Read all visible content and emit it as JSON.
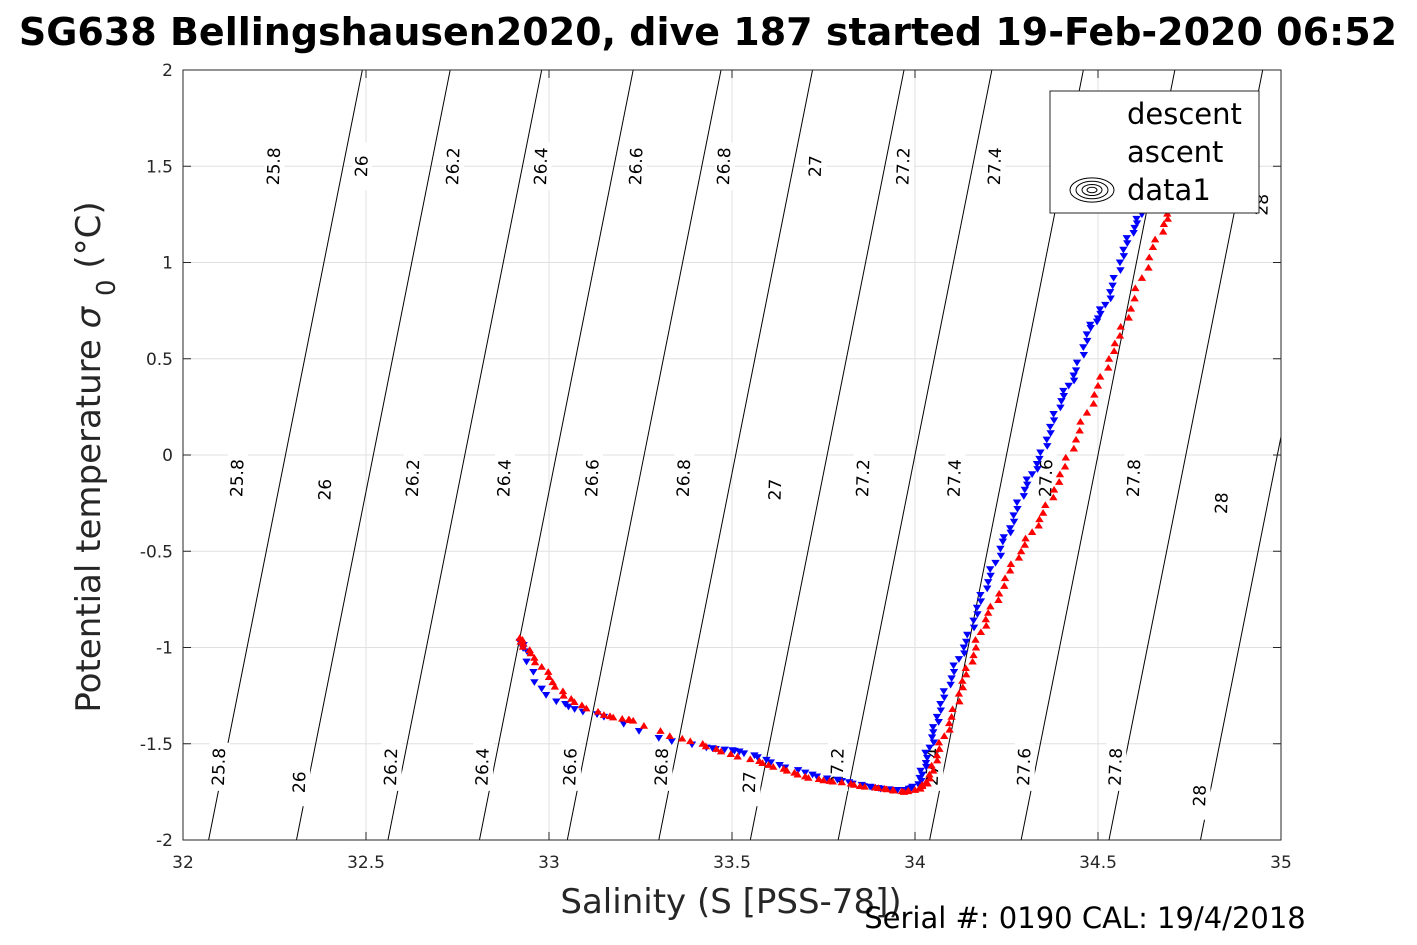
{
  "title": "SG638 Bellingshausen2020, dive 187 started 19-Feb-2020 06:52",
  "footer_text": "Serial #: 0190  CAL: 19/4/2018",
  "chart_data": {
    "type": "scatter",
    "title": "SG638 Bellingshausen2020, dive 187 started 19-Feb-2020 06:52",
    "xlabel": "Salinity (S [PSS-78])",
    "ylabel": "Potential temperature",
    "ylabel_symbol": "σ",
    "ylabel_subscript": "0",
    "ylabel_unit": "(°C)",
    "xlim": [
      32,
      35
    ],
    "ylim": [
      -2,
      2
    ],
    "x_ticks": [
      "32",
      "32.5",
      "33",
      "33.5",
      "34",
      "34.5",
      "35"
    ],
    "y_ticks": [
      "-2",
      "-1.5",
      "-1",
      "-0.5",
      "0",
      "0.5",
      "1",
      "1.5",
      "2"
    ],
    "grid": true,
    "legend_position": "top-right",
    "legend": [
      {
        "label": "descent",
        "marker": "triangle-down",
        "color": "#0000ff"
      },
      {
        "label": "ascent",
        "marker": "triangle-up",
        "color": "#ff0000"
      },
      {
        "label": "data1",
        "marker": "contour",
        "color": "#000000"
      }
    ],
    "contours": [
      {
        "level": "25.8",
        "x_bottom": 32.07,
        "x_top": 32.05
      },
      {
        "level": "26",
        "x_bottom": 32.31,
        "x_top": 32.29
      },
      {
        "level": "26.2",
        "x_bottom": 32.56,
        "x_top": 32.54
      },
      {
        "level": "26.4",
        "x_bottom": 32.81,
        "x_top": 32.79
      },
      {
        "level": "26.6",
        "x_bottom": 33.05,
        "x_top": 33.04
      },
      {
        "level": "26.8",
        "x_bottom": 33.3,
        "x_top": 33.28
      },
      {
        "level": "27",
        "x_bottom": 33.55,
        "x_top": 33.53
      },
      {
        "level": "27.2",
        "x_bottom": 33.79,
        "x_top": 33.78
      },
      {
        "level": "27.4",
        "x_bottom": 34.04,
        "x_top": 34.02
      },
      {
        "level": "27.6",
        "x_bottom": 34.29,
        "x_top": 34.27
      },
      {
        "level": "27.8",
        "x_bottom": 34.53,
        "x_top": 34.51
      },
      {
        "level": "28",
        "x_bottom": 34.78,
        "x_top": 34.76
      }
    ],
    "contour_top_temp": 5.05,
    "contour_labels": [
      {
        "level": "25.8",
        "x": 32.1,
        "y": -1.62
      },
      {
        "level": "26",
        "x": 32.32,
        "y": -1.7
      },
      {
        "level": "26.2",
        "x": 32.57,
        "y": -1.62
      },
      {
        "level": "26.4",
        "x": 32.82,
        "y": -1.62
      },
      {
        "level": "26.6",
        "x": 33.06,
        "y": -1.62
      },
      {
        "level": "26.8",
        "x": 33.31,
        "y": -1.62
      },
      {
        "level": "27",
        "x": 33.55,
        "y": -1.7
      },
      {
        "level": "27.2",
        "x": 33.79,
        "y": -1.62
      },
      {
        "level": "27.4",
        "x": 34.05,
        "y": -1.62
      },
      {
        "level": "27.6",
        "x": 34.3,
        "y": -1.62
      },
      {
        "level": "27.8",
        "x": 34.55,
        "y": -1.62
      },
      {
        "level": "28",
        "x": 34.78,
        "y": -1.77
      },
      {
        "level": "25.8",
        "x": 32.15,
        "y": -0.12
      },
      {
        "level": "26",
        "x": 32.39,
        "y": -0.18
      },
      {
        "level": "26.2",
        "x": 32.63,
        "y": -0.12
      },
      {
        "level": "26.4",
        "x": 32.88,
        "y": -0.12
      },
      {
        "level": "26.6",
        "x": 33.12,
        "y": -0.12
      },
      {
        "level": "26.8",
        "x": 33.37,
        "y": -0.12
      },
      {
        "level": "27",
        "x": 33.62,
        "y": -0.18
      },
      {
        "level": "27.2",
        "x": 33.86,
        "y": -0.12
      },
      {
        "level": "27.4",
        "x": 34.11,
        "y": -0.12
      },
      {
        "level": "27.6",
        "x": 34.36,
        "y": -0.12
      },
      {
        "level": "27.8",
        "x": 34.6,
        "y": -0.12
      },
      {
        "level": "28",
        "x": 34.84,
        "y": -0.25
      },
      {
        "level": "25.8",
        "x": 32.25,
        "y": 1.5
      },
      {
        "level": "26",
        "x": 32.49,
        "y": 1.5
      },
      {
        "level": "26.2",
        "x": 32.74,
        "y": 1.5
      },
      {
        "level": "26.4",
        "x": 32.98,
        "y": 1.5
      },
      {
        "level": "26.6",
        "x": 33.24,
        "y": 1.5
      },
      {
        "level": "26.8",
        "x": 33.48,
        "y": 1.5
      },
      {
        "level": "27",
        "x": 33.73,
        "y": 1.5
      },
      {
        "level": "27.2",
        "x": 33.97,
        "y": 1.5
      },
      {
        "level": "27.4",
        "x": 34.22,
        "y": 1.5
      },
      {
        "level": "27.6",
        "x": 34.36,
        "y": -0.12
      },
      {
        "level": "28",
        "x": 34.95,
        "y": 1.3
      }
    ],
    "series": [
      {
        "name": "descent",
        "marker": "triangle-down",
        "color": "#0000ff",
        "x": [
          32.92,
          32.94,
          32.96,
          33.02,
          33.07,
          33.15,
          33.3,
          33.43,
          33.48,
          33.52,
          33.57,
          33.63,
          33.7,
          33.76,
          33.82,
          33.86,
          33.9,
          33.94,
          33.97,
          33.99,
          34.01,
          34.02,
          34.03,
          34.04,
          34.05,
          34.06,
          34.08,
          34.1,
          34.12,
          34.14,
          34.16,
          34.18,
          34.2,
          34.22,
          34.24,
          34.26,
          34.28,
          34.3,
          34.32,
          34.34,
          34.36,
          34.38,
          34.4,
          34.42,
          34.44,
          34.46,
          34.48,
          34.5,
          34.52,
          34.54,
          34.56,
          34.58,
          34.6,
          34.62,
          34.64,
          34.66,
          34.68,
          34.7
        ],
        "y": [
          -0.97,
          -1.02,
          -1.18,
          -1.28,
          -1.32,
          -1.36,
          -1.47,
          -1.52,
          -1.53,
          -1.54,
          -1.57,
          -1.61,
          -1.65,
          -1.68,
          -1.7,
          -1.72,
          -1.73,
          -1.74,
          -1.74,
          -1.73,
          -1.71,
          -1.66,
          -1.6,
          -1.52,
          -1.44,
          -1.36,
          -1.26,
          -1.16,
          -1.06,
          -0.97,
          -0.86,
          -0.76,
          -0.66,
          -0.56,
          -0.45,
          -0.38,
          -0.28,
          -0.18,
          -0.1,
          -0.02,
          0.08,
          0.18,
          0.28,
          0.36,
          0.44,
          0.56,
          0.66,
          0.71,
          0.78,
          0.88,
          1.0,
          1.1,
          1.18,
          1.25,
          1.32,
          1.38,
          1.42,
          1.5
        ]
      },
      {
        "name": "ascent",
        "marker": "triangle-up",
        "color": "#ff0000",
        "x": [
          32.92,
          32.93,
          32.95,
          32.98,
          33.01,
          33.04,
          33.09,
          33.15,
          33.2,
          33.23,
          33.33,
          33.42,
          33.47,
          33.55,
          33.6,
          33.65,
          33.7,
          33.75,
          33.8,
          33.85,
          33.9,
          33.94,
          33.97,
          34.0,
          34.02,
          34.03,
          34.05,
          34.06,
          34.08,
          34.1,
          34.12,
          34.14,
          34.16,
          34.18,
          34.2,
          34.23,
          34.26,
          34.29,
          34.32,
          34.35,
          34.38,
          34.41,
          34.44,
          34.47,
          34.5,
          34.53,
          34.56,
          34.59,
          34.62,
          34.65,
          34.68,
          34.7
        ],
        "y": [
          -0.95,
          -0.98,
          -1.03,
          -1.1,
          -1.18,
          -1.25,
          -1.3,
          -1.35,
          -1.37,
          -1.38,
          -1.46,
          -1.5,
          -1.54,
          -1.58,
          -1.61,
          -1.64,
          -1.67,
          -1.69,
          -1.7,
          -1.72,
          -1.73,
          -1.74,
          -1.75,
          -1.74,
          -1.72,
          -1.7,
          -1.64,
          -1.56,
          -1.46,
          -1.36,
          -1.24,
          -1.14,
          -1.04,
          -0.92,
          -0.82,
          -0.72,
          -0.6,
          -0.5,
          -0.4,
          -0.3,
          -0.18,
          -0.06,
          0.08,
          0.22,
          0.36,
          0.5,
          0.62,
          0.76,
          0.92,
          1.08,
          1.2,
          1.28
        ]
      }
    ]
  }
}
